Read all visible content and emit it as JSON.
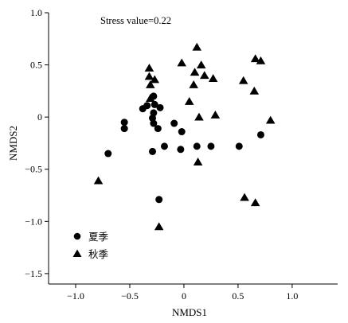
{
  "chart_data": {
    "type": "scatter",
    "title": "",
    "annotation": "Stress value=0.22",
    "xlabel": "NMDS1",
    "ylabel": "NMDS2",
    "xlim": [
      -1.25,
      1.42
    ],
    "ylim": [
      -1.6,
      1.0
    ],
    "xticks": [
      -1.0,
      -0.5,
      0,
      0.5,
      1.0
    ],
    "xtick_labels": [
      "−1.0",
      "−0.5",
      "0",
      "0.5",
      "1.0"
    ],
    "yticks": [
      1.0,
      0.5,
      0,
      -0.5,
      -1.0,
      -1.5
    ],
    "ytick_labels": [
      "1.0",
      "0.5",
      "0",
      "−0.5",
      "−1.0",
      "−1.5"
    ],
    "legend_position": "bottom-left",
    "series": [
      {
        "name": "夏季",
        "marker": "circle",
        "points": [
          [
            -0.7,
            -0.35
          ],
          [
            -0.55,
            -0.05
          ],
          [
            -0.55,
            -0.11
          ],
          [
            -0.38,
            0.08
          ],
          [
            -0.34,
            0.11
          ],
          [
            -0.28,
            0.2
          ],
          [
            -0.27,
            0.12
          ],
          [
            -0.22,
            0.09
          ],
          [
            -0.28,
            0.04
          ],
          [
            -0.29,
            -0.01
          ],
          [
            -0.28,
            -0.06
          ],
          [
            -0.24,
            -0.11
          ],
          [
            -0.09,
            -0.06
          ],
          [
            -0.02,
            -0.14
          ],
          [
            -0.29,
            -0.33
          ],
          [
            -0.18,
            -0.28
          ],
          [
            -0.03,
            -0.31
          ],
          [
            0.12,
            -0.28
          ],
          [
            0.25,
            -0.28
          ],
          [
            0.51,
            -0.28
          ],
          [
            0.71,
            -0.17
          ],
          [
            -0.23,
            -0.79
          ]
        ]
      },
      {
        "name": "秋季",
        "marker": "triangle",
        "points": [
          [
            -0.79,
            -0.61
          ],
          [
            -0.32,
            0.47
          ],
          [
            -0.32,
            0.39
          ],
          [
            -0.27,
            0.36
          ],
          [
            -0.31,
            0.31
          ],
          [
            -0.31,
            0.18
          ],
          [
            -0.02,
            0.52
          ],
          [
            0.1,
            0.43
          ],
          [
            0.09,
            0.31
          ],
          [
            0.12,
            0.67
          ],
          [
            0.16,
            0.5
          ],
          [
            0.19,
            0.4
          ],
          [
            0.27,
            0.37
          ],
          [
            0.05,
            0.15
          ],
          [
            0.14,
            0.0
          ],
          [
            0.29,
            0.02
          ],
          [
            0.13,
            -0.43
          ],
          [
            0.55,
            0.35
          ],
          [
            0.65,
            0.25
          ],
          [
            0.66,
            0.56
          ],
          [
            0.71,
            0.54
          ],
          [
            0.8,
            -0.03
          ],
          [
            0.56,
            -0.77
          ],
          [
            0.66,
            -0.82
          ],
          [
            -0.23,
            -1.05
          ]
        ]
      }
    ]
  }
}
